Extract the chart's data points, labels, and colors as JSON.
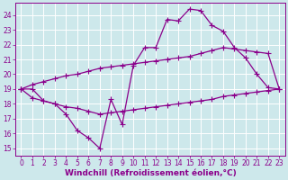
{
  "background_color": "#cde8eb",
  "grid_color": "#ffffff",
  "line_color": "#8b008b",
  "xlabel": "Windchill (Refroidissement éolien,°C)",
  "xlim": [
    -0.5,
    23.5
  ],
  "ylim": [
    14.5,
    24.8
  ],
  "yticks": [
    15,
    16,
    17,
    18,
    19,
    20,
    21,
    22,
    23,
    24
  ],
  "xticks": [
    0,
    1,
    2,
    3,
    4,
    5,
    6,
    7,
    8,
    9,
    10,
    11,
    12,
    13,
    14,
    15,
    16,
    17,
    18,
    19,
    20,
    21,
    22,
    23
  ],
  "series1_x": [
    0,
    1,
    2,
    3,
    4,
    5,
    6,
    7,
    8,
    9,
    10,
    11,
    12,
    13,
    14,
    15,
    16,
    17,
    18,
    19,
    20,
    21,
    22,
    23
  ],
  "series1_y": [
    19.0,
    19.0,
    18.2,
    18.0,
    17.3,
    16.2,
    15.7,
    15.0,
    18.3,
    16.6,
    20.6,
    21.8,
    21.8,
    23.7,
    23.6,
    24.4,
    24.3,
    23.3,
    22.9,
    21.8,
    21.1,
    20.0,
    19.1,
    19.0
  ],
  "series2_x": [
    0,
    1,
    2,
    3,
    4,
    5,
    6,
    7,
    8,
    9,
    10,
    11,
    12,
    13,
    14,
    15,
    16,
    17,
    18,
    19,
    20,
    21,
    22,
    23
  ],
  "series2_y": [
    19.0,
    18.4,
    18.2,
    18.0,
    17.8,
    17.7,
    17.5,
    17.3,
    17.4,
    17.5,
    17.6,
    17.7,
    17.8,
    17.9,
    18.0,
    18.1,
    18.2,
    18.3,
    18.5,
    18.6,
    18.7,
    18.8,
    18.9,
    19.0
  ],
  "series3_x": [
    0,
    1,
    2,
    3,
    4,
    5,
    6,
    7,
    8,
    9,
    10,
    11,
    12,
    13,
    14,
    15,
    16,
    17,
    18,
    19,
    20,
    21,
    22,
    23
  ],
  "series3_y": [
    19.0,
    19.3,
    19.5,
    19.7,
    19.9,
    20.0,
    20.2,
    20.4,
    20.5,
    20.6,
    20.7,
    20.8,
    20.9,
    21.0,
    21.1,
    21.2,
    21.4,
    21.6,
    21.8,
    21.7,
    21.6,
    21.5,
    21.4,
    19.0
  ],
  "tick_fontsize": 5.5,
  "xlabel_fontsize": 6.5,
  "marker_size": 2.5,
  "line_width": 0.9
}
